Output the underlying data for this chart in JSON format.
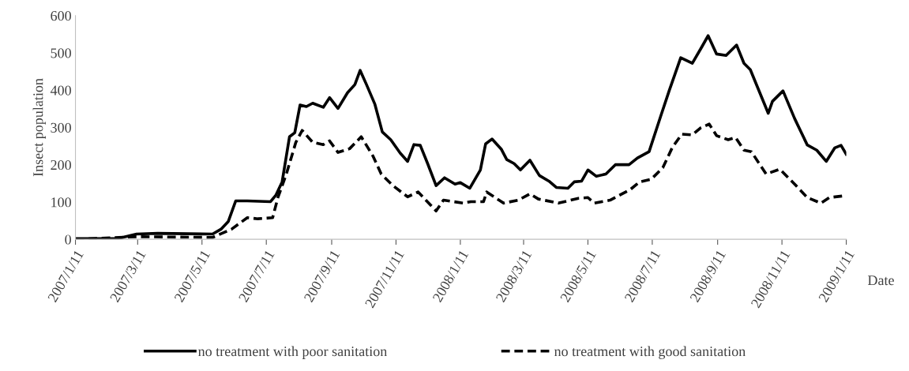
{
  "chart_data": {
    "type": "line",
    "ylabel": "Insect population",
    "xlabel": "Date",
    "ylim": [
      0,
      600
    ],
    "yticks": [
      0,
      100,
      200,
      300,
      400,
      500,
      600
    ],
    "xlim": [
      "2007-01-11",
      "2009-01-11"
    ],
    "xticks": [
      {
        "value": "2007-01-11",
        "label": "2007/1/11"
      },
      {
        "value": "2007-03-11",
        "label": "2007/3/11"
      },
      {
        "value": "2007-05-11",
        "label": "2007/5/11"
      },
      {
        "value": "2007-07-11",
        "label": "2007/7/11"
      },
      {
        "value": "2007-09-11",
        "label": "2007/9/11"
      },
      {
        "value": "2007-11-11",
        "label": "2007/11/11"
      },
      {
        "value": "2008-01-11",
        "label": "2008/1/11"
      },
      {
        "value": "2008-03-11",
        "label": "2008/3/11"
      },
      {
        "value": "2008-05-11",
        "label": "2008/5/11"
      },
      {
        "value": "2008-07-11",
        "label": "2008/7/11"
      },
      {
        "value": "2008-09-11",
        "label": "2008/9/11"
      },
      {
        "value": "2008-11-11",
        "label": "2008/11/11"
      },
      {
        "value": "2009-01-11",
        "label": "2009/1/11"
      }
    ],
    "grid": false,
    "legend": "bottom",
    "marker": "none",
    "series": [
      {
        "name": "no treatment with poor sanitation",
        "color": "#000000",
        "line_style": "solid",
        "x": [
          "2007-01-11",
          "2007-02-20",
          "2007-03-10",
          "2007-03-30",
          "2007-05-21",
          "2007-05-29",
          "2007-06-05",
          "2007-06-12",
          "2007-06-23",
          "2007-07-15",
          "2007-07-20",
          "2007-07-26",
          "2007-08-02",
          "2007-08-07",
          "2007-08-12",
          "2007-08-18",
          "2007-08-24",
          "2007-09-03",
          "2007-09-09",
          "2007-09-17",
          "2007-09-26",
          "2007-10-03",
          "2007-10-08",
          "2007-10-14",
          "2007-10-22",
          "2007-10-29",
          "2007-11-06",
          "2007-11-15",
          "2007-11-22",
          "2007-11-28",
          "2007-12-04",
          "2007-12-11",
          "2007-12-19",
          "2007-12-27",
          "2008-01-06",
          "2008-01-11",
          "2008-01-20",
          "2008-01-30",
          "2008-02-04",
          "2008-02-10",
          "2008-02-19",
          "2008-02-24",
          "2008-03-02",
          "2008-03-08",
          "2008-03-17",
          "2008-03-26",
          "2008-04-04",
          "2008-04-11",
          "2008-04-22",
          "2008-04-28",
          "2008-05-05",
          "2008-05-11",
          "2008-05-19",
          "2008-05-28",
          "2008-06-06",
          "2008-06-19",
          "2008-06-27",
          "2008-07-08",
          "2008-07-19",
          "2008-07-27",
          "2008-08-07",
          "2008-08-18",
          "2008-08-26",
          "2008-09-02",
          "2008-09-10",
          "2008-09-19",
          "2008-09-29",
          "2008-10-06",
          "2008-10-12",
          "2008-10-29",
          "2008-11-02",
          "2008-11-12",
          "2008-11-23",
          "2008-12-05",
          "2008-12-14",
          "2008-12-23",
          "2008-12-31",
          "2009-01-06",
          "2009-01-11"
        ],
        "values": [
          2,
          2,
          14,
          16,
          14,
          27,
          48,
          103,
          103,
          101,
          118,
          154,
          275,
          286,
          360,
          356,
          365,
          354,
          380,
          351,
          393,
          415,
          453,
          415,
          362,
          288,
          267,
          231,
          209,
          254,
          252,
          203,
          144,
          165,
          148,
          152,
          137,
          186,
          256,
          269,
          241,
          214,
          203,
          186,
          212,
          171,
          156,
          139,
          137,
          154,
          156,
          186,
          169,
          175,
          200,
          200,
          218,
          235,
          330,
          398,
          487,
          472,
          511,
          546,
          497,
          493,
          521,
          472,
          455,
          338,
          370,
          398,
          324,
          253,
          239,
          209,
          245,
          252,
          228
        ]
      },
      {
        "name": "no treatment with good sanitation",
        "color": "#000000",
        "line_style": "dashed",
        "x": [
          "2007-01-11",
          "2007-03-10",
          "2007-05-21",
          "2007-06-08",
          "2007-06-23",
          "2007-07-03",
          "2007-07-17",
          "2007-07-22",
          "2007-07-30",
          "2007-08-08",
          "2007-08-14",
          "2007-08-24",
          "2007-09-03",
          "2007-09-09",
          "2007-09-17",
          "2007-09-28",
          "2007-10-09",
          "2007-10-20",
          "2007-10-28",
          "2007-11-08",
          "2007-11-22",
          "2007-12-02",
          "2007-12-10",
          "2007-12-19",
          "2007-12-26",
          "2008-01-14",
          "2008-01-21",
          "2008-02-02",
          "2008-02-05",
          "2008-02-21",
          "2008-03-06",
          "2008-03-17",
          "2008-03-25",
          "2008-04-13",
          "2008-05-02",
          "2008-05-11",
          "2008-05-17",
          "2008-06-01",
          "2008-06-20",
          "2008-06-29",
          "2008-07-10",
          "2008-07-21",
          "2008-07-30",
          "2008-08-08",
          "2008-08-18",
          "2008-08-26",
          "2008-09-03",
          "2008-09-10",
          "2008-09-21",
          "2008-09-28",
          "2008-10-06",
          "2008-10-13",
          "2008-10-27",
          "2008-11-09",
          "2008-11-23",
          "2008-12-05",
          "2008-12-18",
          "2008-12-26",
          "2009-01-07"
        ],
        "values": [
          0,
          7,
          5,
          27,
          58,
          55,
          58,
          112,
          175,
          260,
          292,
          260,
          254,
          264,
          233,
          243,
          275,
          224,
          175,
          144,
          114,
          127,
          103,
          76,
          105,
          97,
          101,
          101,
          127,
          97,
          105,
          122,
          108,
          97,
          110,
          112,
          97,
          105,
          133,
          154,
          161,
          192,
          246,
          282,
          280,
          299,
          309,
          278,
          267,
          273,
          239,
          235,
          175,
          188,
          148,
          112,
          97,
          112,
          116
        ]
      }
    ]
  }
}
